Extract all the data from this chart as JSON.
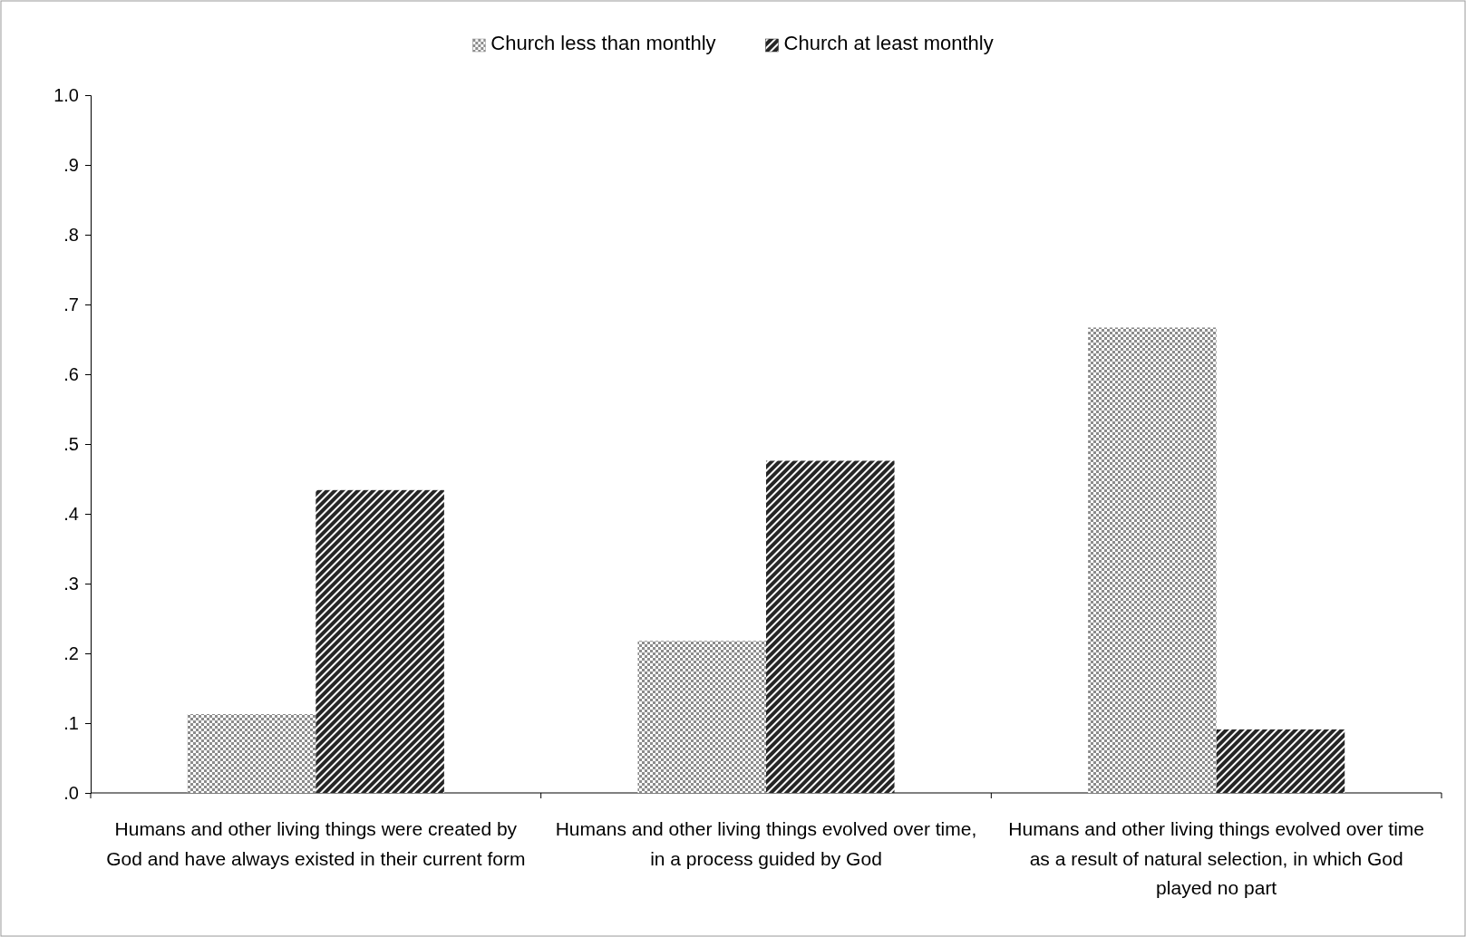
{
  "chart_data": {
    "type": "bar",
    "categories": [
      "Humans and other living things were created by God and have always existed in their current form",
      "Humans and other living things evolved over time, in a process guided by God",
      "Humans and other living things evolved over time as a result of natural selection, in which God played no part"
    ],
    "series": [
      {
        "name": "Church less than monthly",
        "color": "#8c8c8c",
        "values": [
          0.113,
          0.218,
          0.667
        ]
      },
      {
        "name": "Church at least monthly",
        "color": "#262626",
        "values": [
          0.434,
          0.476,
          0.091
        ]
      }
    ],
    "ylim": [
      0,
      1
    ],
    "yticks": [
      {
        "value": 0,
        "label": ".0"
      },
      {
        "value": 0.1,
        "label": ".1"
      },
      {
        "value": 0.2,
        "label": ".2"
      },
      {
        "value": 0.3,
        "label": ".3"
      },
      {
        "value": 0.4,
        "label": ".4"
      },
      {
        "value": 0.5,
        "label": ".5"
      },
      {
        "value": 0.6,
        "label": ".6"
      },
      {
        "value": 0.7,
        "label": ".7"
      },
      {
        "value": 0.8,
        "label": ".8"
      },
      {
        "value": 0.9,
        "label": ".9"
      },
      {
        "value": 1,
        "label": "1.0"
      }
    ],
    "grid": false,
    "legend": "top"
  }
}
